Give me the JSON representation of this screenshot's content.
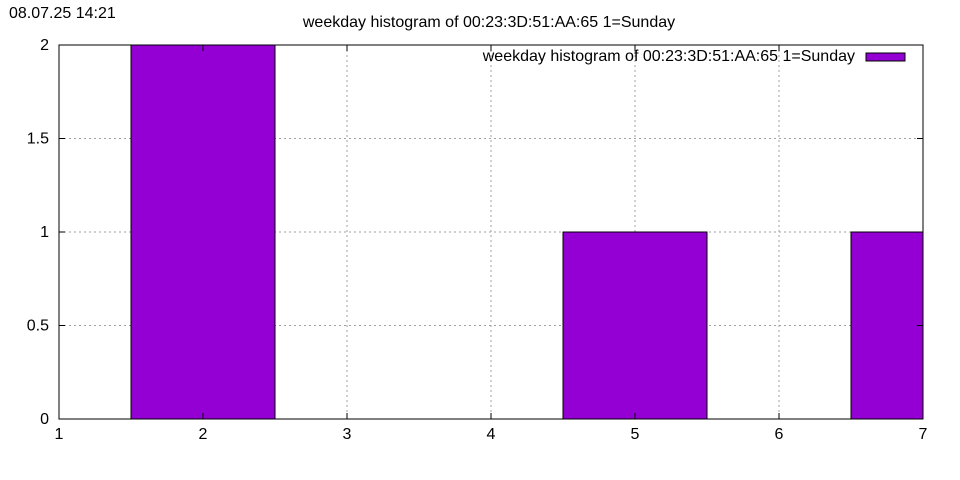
{
  "timestamp": "08.07.25 14:21",
  "chart_data": {
    "type": "bar",
    "title": "weekday histogram of 00:23:3D:51:AA:65 1=Sunday",
    "xlabel": "",
    "ylabel": "",
    "xlim": [
      1,
      7
    ],
    "ylim": [
      0,
      2
    ],
    "x_ticks": [
      1,
      2,
      3,
      4,
      5,
      6,
      7
    ],
    "y_ticks": [
      0,
      0.5,
      1,
      1.5,
      2
    ],
    "grid": true,
    "legend_position": "top-right",
    "series": [
      {
        "name": "weekday histogram of 00:23:3D:51:AA:65 1=Sunday",
        "color": "#9400d3",
        "x": [
          2,
          5,
          7
        ],
        "values": [
          2,
          1,
          1
        ],
        "bar_width": 1
      }
    ]
  }
}
